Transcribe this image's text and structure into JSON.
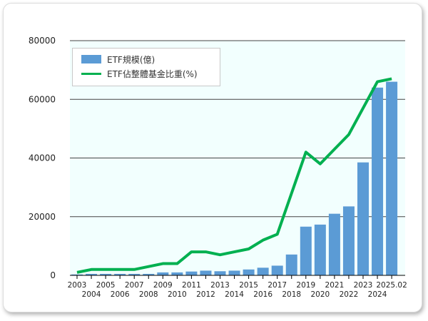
{
  "chart_data": {
    "type": "bar+line",
    "categories": [
      "2003",
      "2004",
      "2005",
      "2006",
      "2007",
      "2008",
      "2009",
      "2010",
      "2011",
      "2012",
      "2013",
      "2014",
      "2015",
      "2016",
      "2017",
      "2018",
      "2019",
      "2020",
      "2021",
      "2022",
      "2023",
      "2024",
      "2025.02"
    ],
    "series": [
      {
        "name": "ETF規模(億)",
        "type": "bar",
        "color": "#5b9bd5",
        "values": [
          300,
          500,
          500,
          500,
          500,
          500,
          1000,
          1000,
          1300,
          1600,
          1400,
          1600,
          2000,
          2600,
          3300,
          7100,
          16600,
          17300,
          21000,
          23500,
          38500,
          64000,
          66000
        ]
      },
      {
        "name": "ETF佔整體基金比重(%)",
        "type": "line",
        "color": "#00b050",
        "values": [
          1,
          2,
          2,
          2,
          2,
          3,
          4,
          4,
          8,
          8,
          7,
          8,
          9,
          12,
          14,
          28,
          42,
          38,
          43,
          48,
          57,
          66,
          67
        ]
      }
    ],
    "yticks": [
      "0",
      "20000",
      "40000",
      "60000",
      "80000"
    ],
    "ylim": [
      0,
      80000
    ],
    "secondary_ylim": [
      0,
      80
    ],
    "grid": true,
    "legend": "top-left"
  }
}
